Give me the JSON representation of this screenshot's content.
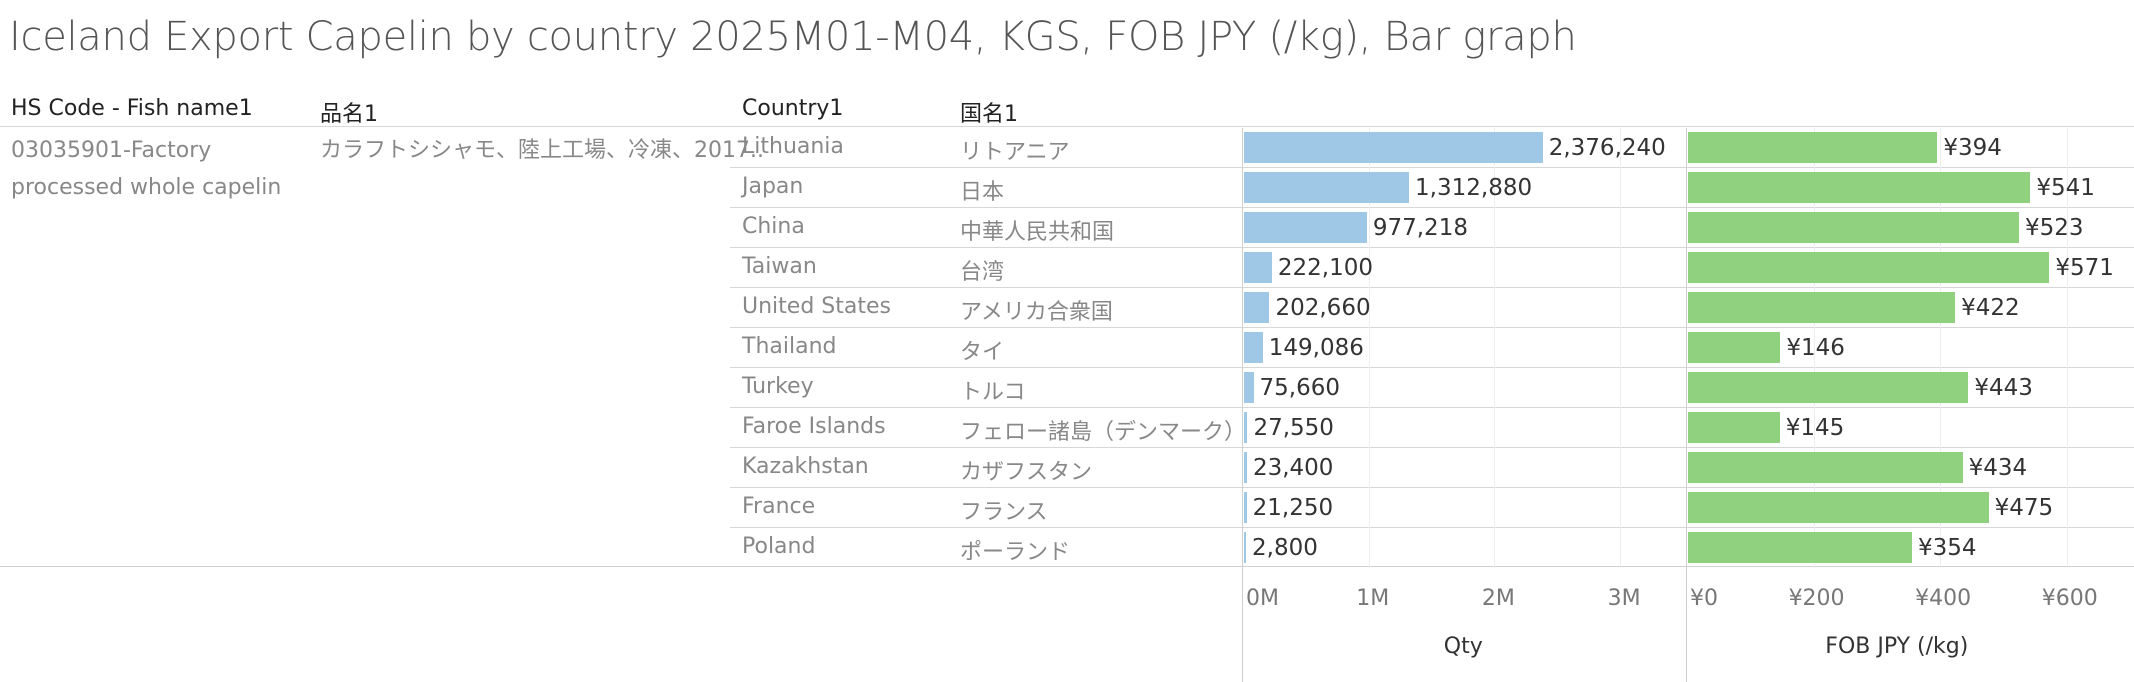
{
  "title": "Iceland Export Capelin by country 2025M01-M04, KGS, FOB JPY (/kg), Bar graph",
  "headers": {
    "hs_code": "HS Code - Fish name1",
    "hinmei": "品名1",
    "country": "Country1",
    "kokumei": "国名1"
  },
  "product": {
    "hs_code": "03035901-Factory processed whole capelin",
    "hinmei": "カラフトシシャモ、陸上工場、冷凍、2017.."
  },
  "colors": {
    "qty_bar": "#9fc8e7",
    "fob_bar": "#8fd17e"
  },
  "chart_data": [
    {
      "type": "bar",
      "orientation": "horizontal",
      "xlabel": "Qty",
      "xlim": [
        0,
        3500000
      ],
      "ticks": [
        {
          "value": 0,
          "label": "0M"
        },
        {
          "value": 1000000,
          "label": "1M"
        },
        {
          "value": 2000000,
          "label": "2M"
        },
        {
          "value": 3000000,
          "label": "3M"
        }
      ],
      "categories": [
        "Lithuania",
        "Japan",
        "China",
        "Taiwan",
        "United States",
        "Thailand",
        "Turkey",
        "Faroe Islands",
        "Kazakhstan",
        "France",
        "Poland"
      ],
      "values": [
        2376240,
        1312880,
        977218,
        222100,
        202660,
        149086,
        75660,
        27550,
        23400,
        21250,
        2800
      ],
      "labels": [
        "2,376,240",
        "1,312,880",
        "977,218",
        "222,100",
        "202,660",
        "149,086",
        "75,660",
        "27,550",
        "23,400",
        "21,250",
        "2,800"
      ]
    },
    {
      "type": "bar",
      "orientation": "horizontal",
      "xlabel": "FOB JPY (/kg)",
      "xlim": [
        0,
        700
      ],
      "ticks": [
        {
          "value": 0,
          "label": "¥0"
        },
        {
          "value": 200,
          "label": "¥200"
        },
        {
          "value": 400,
          "label": "¥400"
        },
        {
          "value": 600,
          "label": "¥600"
        }
      ],
      "categories": [
        "Lithuania",
        "Japan",
        "China",
        "Taiwan",
        "United States",
        "Thailand",
        "Turkey",
        "Faroe Islands",
        "Kazakhstan",
        "France",
        "Poland"
      ],
      "values": [
        394,
        541,
        523,
        571,
        422,
        146,
        443,
        145,
        434,
        475,
        354
      ],
      "labels": [
        "¥394",
        "¥541",
        "¥523",
        "¥571",
        "¥422",
        "¥146",
        "¥443",
        "¥145",
        "¥434",
        "¥475",
        "¥354"
      ]
    }
  ],
  "rows": [
    {
      "country": "Lithuania",
      "kokumei": "リトアニア"
    },
    {
      "country": "Japan",
      "kokumei": "日本"
    },
    {
      "country": "China",
      "kokumei": "中華人民共和国"
    },
    {
      "country": "Taiwan",
      "kokumei": "台湾"
    },
    {
      "country": "United States",
      "kokumei": "アメリカ合衆国"
    },
    {
      "country": "Thailand",
      "kokumei": "タイ"
    },
    {
      "country": "Turkey",
      "kokumei": "トルコ"
    },
    {
      "country": "Faroe Islands",
      "kokumei": "フェロー諸島（デンマーク）"
    },
    {
      "country": "Kazakhstan",
      "kokumei": "カザフスタン"
    },
    {
      "country": "France",
      "kokumei": "フランス"
    },
    {
      "country": "Poland",
      "kokumei": "ポーランド"
    }
  ]
}
